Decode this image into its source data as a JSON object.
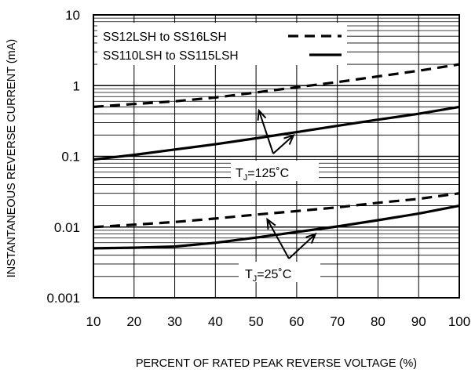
{
  "chart_data": {
    "type": "line",
    "xlabel": "PERCENT OF RATED PEAK REVERSE VOLTAGE (%)",
    "ylabel": "INSTANTANEOUS REVERSE CURRENT (mA)",
    "xlim": [
      10,
      100
    ],
    "ylim": [
      0.001,
      10
    ],
    "yscale": "log",
    "grid": true,
    "legend_position": "top-left",
    "x_ticks": [
      "10",
      "20",
      "30",
      "40",
      "50",
      "60",
      "70",
      "80",
      "90",
      "100"
    ],
    "y_ticks": [
      "0.001",
      "0.01",
      "0.1",
      "1",
      "10"
    ],
    "legend": [
      {
        "label": "SS12LSH to SS16LSH",
        "style": "dashed"
      },
      {
        "label": "SS110LSH to SS115LSH",
        "style": "solid"
      }
    ],
    "series": [
      {
        "style": "dashed",
        "temperature": "125",
        "x": [
          10,
          20,
          30,
          40,
          50,
          60,
          70,
          80,
          90,
          100
        ],
        "y": [
          0.5,
          0.55,
          0.6,
          0.68,
          0.8,
          0.95,
          1.12,
          1.35,
          1.62,
          2.0
        ]
      },
      {
        "style": "solid",
        "temperature": "125",
        "x": [
          10,
          20,
          30,
          40,
          50,
          60,
          70,
          80,
          90,
          100
        ],
        "y": [
          0.09,
          0.105,
          0.125,
          0.148,
          0.18,
          0.22,
          0.27,
          0.33,
          0.4,
          0.5
        ]
      },
      {
        "style": "dashed",
        "temperature": "25",
        "x": [
          10,
          20,
          30,
          40,
          50,
          60,
          70,
          80,
          90,
          100
        ],
        "y": [
          0.01,
          0.0108,
          0.0118,
          0.0132,
          0.015,
          0.0168,
          0.019,
          0.022,
          0.025,
          0.03
        ]
      },
      {
        "style": "solid",
        "temperature": "25",
        "x": [
          10,
          20,
          30,
          40,
          50,
          60,
          70,
          80,
          90,
          100
        ],
        "y": [
          0.005,
          0.0051,
          0.0053,
          0.006,
          0.0071,
          0.0085,
          0.0102,
          0.0125,
          0.0155,
          0.02
        ]
      }
    ],
    "annotations": [
      {
        "prefix": "T",
        "sub": "J",
        "text": "=125˚C",
        "targets": [
          {
            "x": 48,
            "y": 0.78
          },
          {
            "x": 60,
            "y": 0.22
          }
        ]
      },
      {
        "prefix": "T",
        "sub": "J",
        "text": "=25˚C",
        "targets": [
          {
            "x": 52,
            "y": 0.015
          },
          {
            "x": 65,
            "y": 0.0093
          }
        ]
      }
    ]
  }
}
